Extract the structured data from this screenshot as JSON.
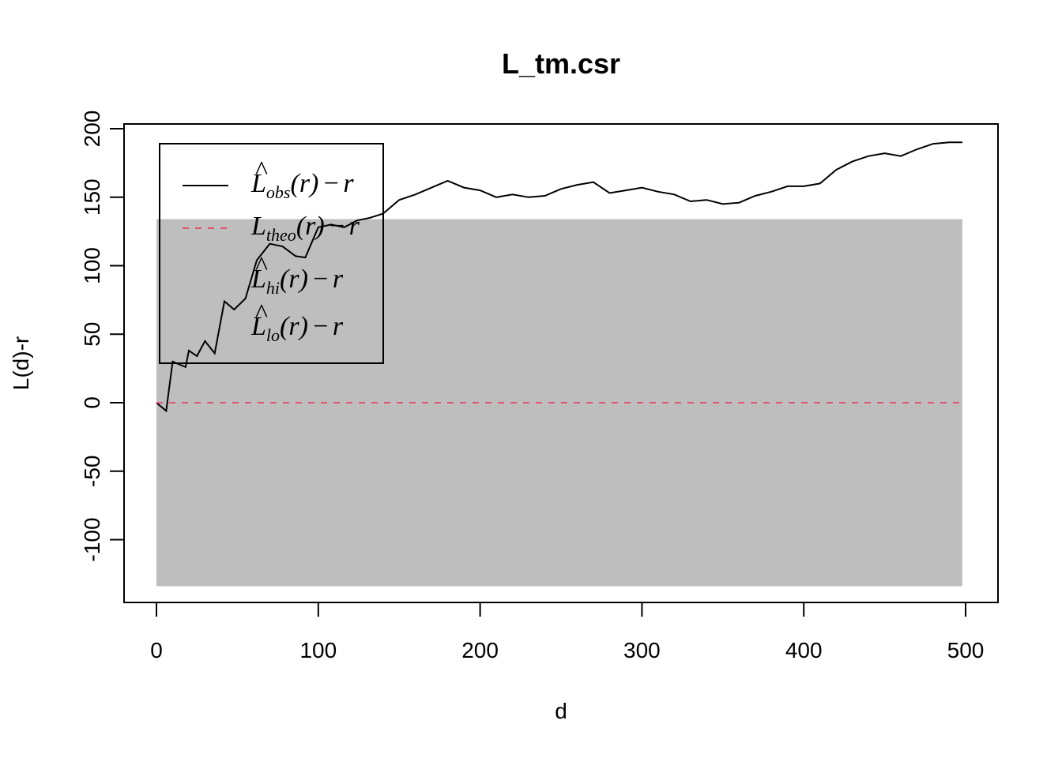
{
  "chart_data": {
    "type": "line",
    "title": "L_tm.csr",
    "xlabel": "d",
    "ylabel": "L(d)-r",
    "xlim": [
      0,
      500
    ],
    "ylim": [
      -140,
      200
    ],
    "x_ticks": [
      "0",
      "100",
      "200",
      "300",
      "400",
      "500"
    ],
    "y_ticks": [
      "-100",
      "-50",
      "0",
      "50",
      "100",
      "150",
      "200"
    ],
    "grid": false,
    "legend_position": "top-left",
    "envelope": {
      "name": "hi/lo envelope",
      "x_range": [
        0,
        498
      ],
      "hi": 134,
      "lo": -134,
      "color": "#bebebe"
    },
    "series": [
      {
        "name": "obs",
        "color": "#000000",
        "style": "solid",
        "x": [
          0,
          6,
          10,
          18,
          20,
          25,
          30,
          36,
          42,
          48,
          55,
          62,
          70,
          78,
          86,
          92,
          100,
          108,
          116,
          124,
          132,
          140,
          150,
          160,
          170,
          180,
          190,
          200,
          210,
          220,
          230,
          240,
          250,
          260,
          270,
          280,
          290,
          300,
          310,
          320,
          330,
          340,
          350,
          360,
          370,
          380,
          390,
          400,
          410,
          420,
          430,
          440,
          450,
          460,
          470,
          480,
          490,
          498
        ],
        "y": [
          0,
          -6,
          30,
          26,
          38,
          34,
          45,
          36,
          74,
          68,
          76,
          104,
          116,
          114,
          107,
          106,
          128,
          130,
          128,
          133,
          135,
          138,
          148,
          152,
          157,
          162,
          157,
          155,
          150,
          152,
          150,
          151,
          156,
          159,
          161,
          153,
          155,
          157,
          154,
          152,
          147,
          148,
          145,
          146,
          151,
          154,
          158,
          158,
          160,
          170,
          176,
          180,
          182,
          180,
          185,
          189,
          190,
          190
        ]
      },
      {
        "name": "theo",
        "color": "#df536b",
        "style": "dashed",
        "x": [
          0,
          498
        ],
        "y": [
          0,
          0
        ]
      }
    ],
    "legend": [
      {
        "main": "L",
        "hat": "^",
        "sub": "obs",
        "rest_r": "r",
        "rest_tail": "r",
        "minus": "−",
        "lparen": "(",
        "rparen": ")"
      },
      {
        "main": "L",
        "hat": "",
        "sub": "theo",
        "rest_r": "r",
        "rest_tail": "r",
        "minus": "−",
        "lparen": "(",
        "rparen": ")"
      },
      {
        "main": "L",
        "hat": "^",
        "sub": "hi",
        "rest_r": "r",
        "rest_tail": "r",
        "minus": "−",
        "lparen": "(",
        "rparen": ")"
      },
      {
        "main": "L",
        "hat": "^",
        "sub": "lo",
        "rest_r": "r",
        "rest_tail": "r",
        "minus": "−",
        "lparen": "(",
        "rparen": ")"
      }
    ]
  }
}
